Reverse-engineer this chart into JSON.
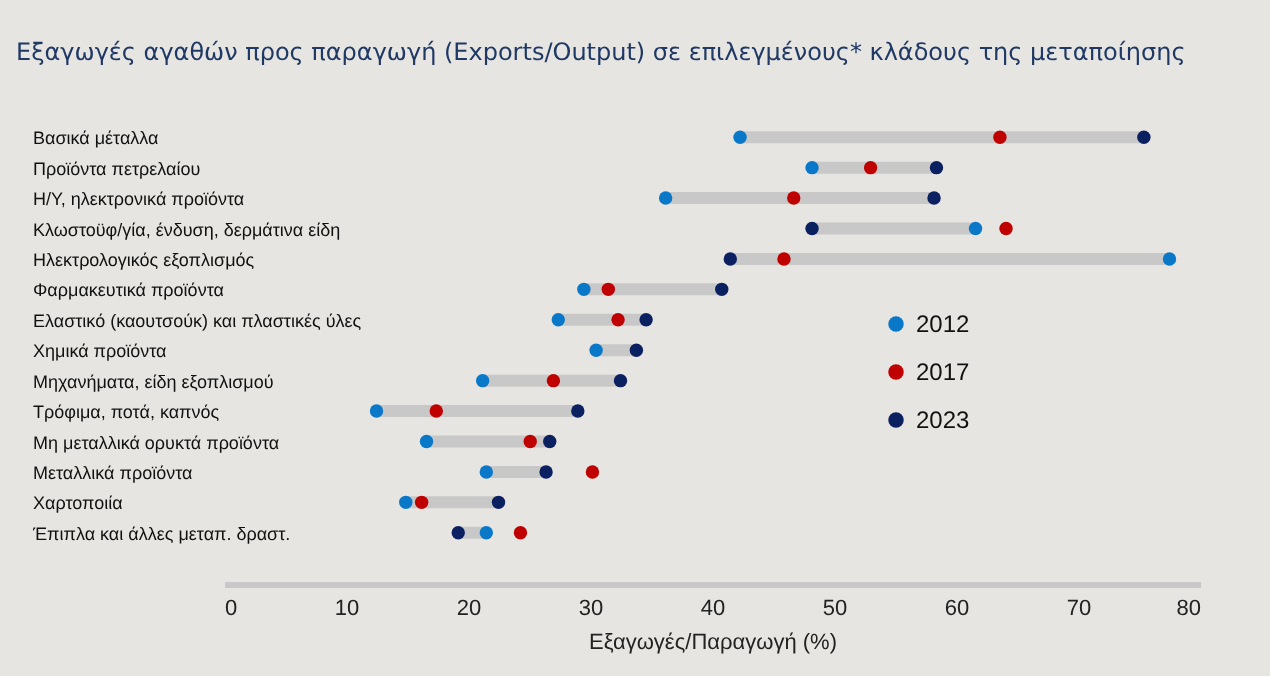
{
  "chart_data": {
    "type": "scatter",
    "orientation": "horizontal",
    "title": "Εξαγωγές αγαθών προς παραγωγή (Exports/Output) σε επιλεγμένους* κλάδους της μεταποίησης",
    "xlabel": "Εξαγωγές/Παραγωγή (%)",
    "categories": [
      "Βασικά μέταλλα",
      "Προϊόντα πετρελαίου",
      "Η/Υ, ηλεκτρονικά προϊόντα",
      "Κλωστοϋφ/γία, ένδυση, δερμάτινα είδη",
      "Ηλεκτρολογικός εξοπλισμός",
      "Φαρμακευτικά προϊόντα",
      "Ελαστικό (καουτσούκ) και πλαστικές ύλες",
      "Χημικά προϊόντα",
      "Μηχανήματα, είδη εξοπλισμού",
      "Τρόφιμα, ποτά, καπνός",
      "Μη μεταλλικά ορυκτά προϊόντα",
      "Μεταλλικά προϊόντα",
      "Χαρτοποιία",
      "Έπιπλα και άλλες μεταπ. δραστ."
    ],
    "series": [
      {
        "type": "bar",
        "color": "#c8c8c8",
        "base": [
          42.3,
          48.2,
          36.2,
          48.2,
          41.5,
          29.5,
          27.4,
          30.5,
          21.2,
          12.5,
          16.6,
          21.5,
          14.9,
          19.2
        ],
        "values": [
          33.1,
          10.2,
          22.0,
          13.4,
          36.0,
          11.3,
          7.2,
          3.3,
          11.3,
          16.5,
          10.1,
          4.9,
          7.6,
          2.3
        ]
      },
      {
        "name": "2012",
        "color": "#0a78c8",
        "values": [
          42.3,
          48.2,
          36.2,
          61.6,
          77.5,
          29.5,
          27.4,
          30.5,
          21.2,
          12.5,
          16.6,
          21.5,
          14.9,
          21.5
        ]
      },
      {
        "name": "2017",
        "color": "#c00000",
        "values": [
          63.6,
          53.0,
          46.7,
          64.1,
          45.9,
          31.5,
          32.3,
          null,
          27.0,
          17.4,
          25.1,
          30.2,
          16.2,
          24.3
        ]
      },
      {
        "name": "2023",
        "color": "#0a2060",
        "values": [
          75.4,
          58.4,
          58.2,
          48.2,
          41.5,
          40.8,
          34.6,
          33.8,
          32.5,
          29.0,
          26.7,
          26.4,
          22.5,
          19.2
        ]
      }
    ],
    "xlim": [
      0,
      80
    ],
    "xticks": [
      0,
      10,
      20,
      30,
      40,
      50,
      60,
      70,
      80
    ],
    "legend": "right",
    "marker": "circle"
  }
}
